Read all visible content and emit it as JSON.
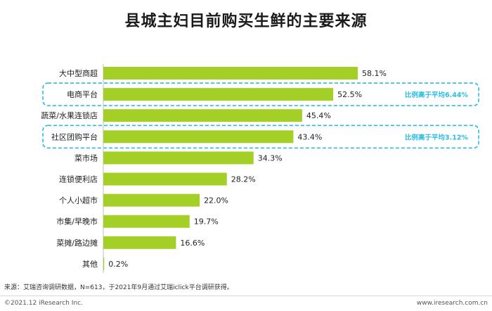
{
  "title": "县城主妇目前购买生鲜的主要来源",
  "chart_data": {
    "type": "bar",
    "orientation": "horizontal",
    "categories": [
      "大中型商超",
      "电商平台",
      "蔬菜/水果连锁店",
      "社区团购平台",
      "菜市场",
      "连锁便利店",
      "个人小超市",
      "市集/早晚市",
      "菜摊/路边摊",
      "其他"
    ],
    "values": [
      58.1,
      52.5,
      45.4,
      43.4,
      34.3,
      28.2,
      22.0,
      19.7,
      16.6,
      0.2
    ],
    "value_labels": [
      "58.1%",
      "52.5%",
      "45.4%",
      "43.4%",
      "34.3%",
      "28.2%",
      "22.0%",
      "19.7%",
      "16.6%",
      "0.2%"
    ],
    "xlim": [
      0,
      58.1
    ],
    "bar_color": "#a3cf26",
    "highlight_color": "#29bde4",
    "highlights": [
      {
        "category": "电商平台",
        "annotation": "比例高于平均6.44%"
      },
      {
        "category": "社区团购平台",
        "annotation": "比例高于平均3.12%"
      }
    ]
  },
  "source": "来源：艾瑞咨询调研数据，N=613，于2021年9月通过艾瑞iclick平台调研获得。",
  "copyright": "©2021.12 iResearch Inc.",
  "website": "www.iresearch.com.cn"
}
